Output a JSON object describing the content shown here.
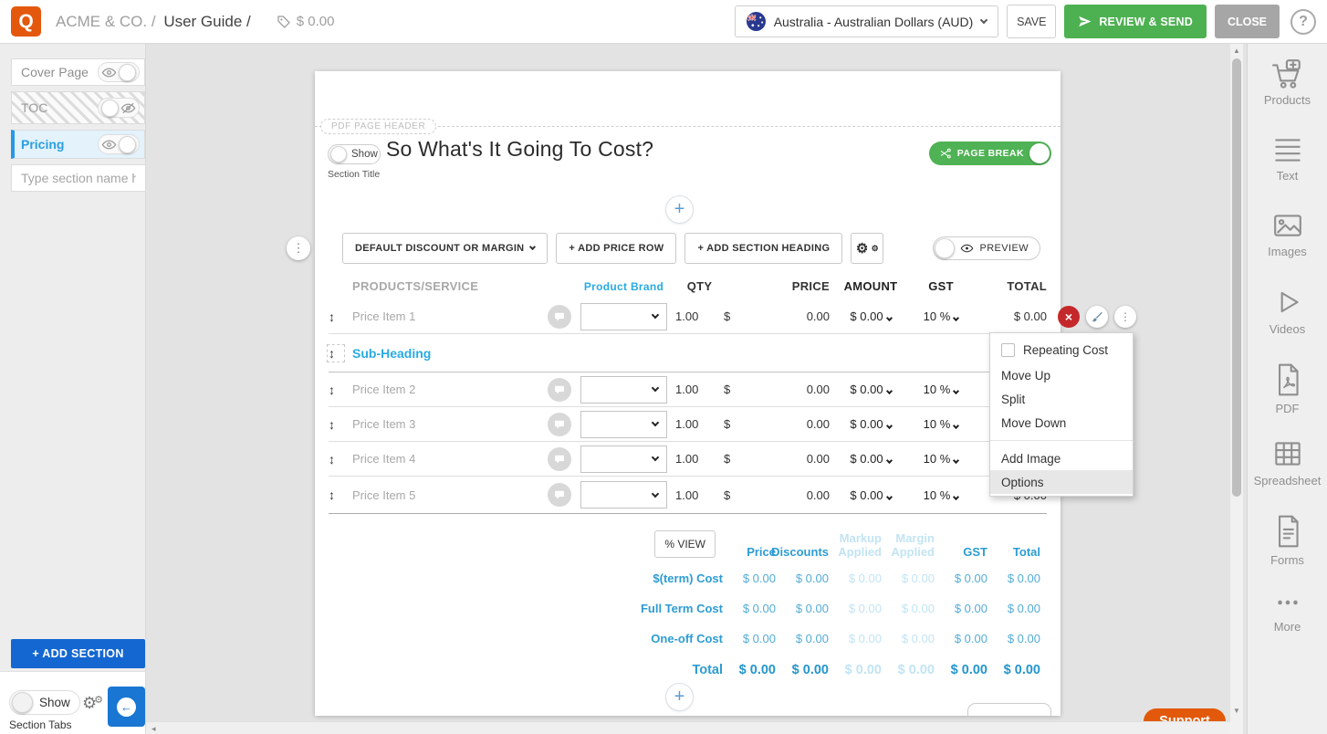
{
  "topbar": {
    "brand": "ACME & CO. /",
    "doc": "User Guide /",
    "tag_amount": "$ 0.00",
    "currency": "Australia - Australian Dollars (AUD)",
    "save": "SAVE",
    "review_send": "REVIEW & SEND",
    "close": "CLOSE",
    "help": "?"
  },
  "left_sidebar": {
    "sections": [
      {
        "label": "Cover Page",
        "state": "visible",
        "style": "normal"
      },
      {
        "label": "TOC",
        "state": "hidden",
        "style": "striped"
      },
      {
        "label": "Pricing",
        "state": "visible",
        "style": "active"
      }
    ],
    "new_section_placeholder": "Type section name h...",
    "add_section": "+ ADD SECTION",
    "show_label": "Show",
    "section_tabs_label": "Section Tabs"
  },
  "editor": {
    "pdf_header_tag": "PDF PAGE HEADER",
    "show_label": "Show",
    "section_title_caption": "Section Title",
    "title": "So What's It Going To Cost?",
    "page_break_label": "PAGE BREAK",
    "toolbar": {
      "discount_dropdown": "DEFAULT DISCOUNT OR MARGIN",
      "add_price_row": "+ ADD PRICE ROW",
      "add_section_heading": "+ ADD SECTION HEADING",
      "preview": "PREVIEW"
    },
    "table": {
      "headers": [
        "PRODUCTS/SERVICE",
        "Product Brand",
        "QTY",
        "PRICE",
        "AMOUNT",
        "GST",
        "TOTAL"
      ],
      "items": [
        {
          "type": "price",
          "name": "Price Item 1",
          "qty": "1.00",
          "currency": "$",
          "price": "0.00",
          "amount": "$ 0.00",
          "gst": "10 %",
          "total": "$ 0.00"
        },
        {
          "type": "subheading",
          "label": "Sub-Heading"
        },
        {
          "type": "price",
          "name": "Price Item 2",
          "qty": "1.00",
          "currency": "$",
          "price": "0.00",
          "amount": "$ 0.00",
          "gst": "10 %",
          "total": "$ 0.00"
        },
        {
          "type": "price",
          "name": "Price Item 3",
          "qty": "1.00",
          "currency": "$",
          "price": "0.00",
          "amount": "$ 0.00",
          "gst": "10 %",
          "total": "$ 0.00"
        },
        {
          "type": "price",
          "name": "Price Item 4",
          "qty": "1.00",
          "currency": "$",
          "price": "0.00",
          "amount": "$ 0.00",
          "gst": "10 %",
          "total": "$ 0.00"
        },
        {
          "type": "price",
          "name": "Price Item 5",
          "qty": "1.00",
          "currency": "$",
          "price": "0.00",
          "amount": "$ 0.00",
          "gst": "10 %",
          "total": "$ 0.00"
        }
      ]
    },
    "row_menu": {
      "items": [
        {
          "label": "Repeating Cost",
          "checkbox": true
        },
        {
          "label": "Move Up"
        },
        {
          "label": "Split"
        },
        {
          "label": "Move Down",
          "divider_after": true
        },
        {
          "label": "Add Image"
        },
        {
          "label": "Options",
          "highlighted": true
        }
      ]
    },
    "summary": {
      "view_button": "% VIEW",
      "columns": [
        {
          "label": "Price",
          "faded": false
        },
        {
          "label": "Discounts",
          "faded": false
        },
        {
          "label": "Markup Applied",
          "faded": true
        },
        {
          "label": "Margin Applied",
          "faded": true
        },
        {
          "label": "GST",
          "faded": false
        },
        {
          "label": "Total",
          "faded": false
        }
      ],
      "rows": [
        {
          "label": "$(term) Cost",
          "total": false,
          "values": [
            "$ 0.00",
            "$ 0.00",
            "$ 0.00",
            "$ 0.00",
            "$ 0.00",
            "$ 0.00"
          ]
        },
        {
          "label": "Full Term Cost",
          "total": false,
          "values": [
            "$ 0.00",
            "$ 0.00",
            "$ 0.00",
            "$ 0.00",
            "$ 0.00",
            "$ 0.00"
          ]
        },
        {
          "label": "One-off Cost",
          "total": false,
          "values": [
            "$ 0.00",
            "$ 0.00",
            "$ 0.00",
            "$ 0.00",
            "$ 0.00",
            "$ 0.00"
          ]
        },
        {
          "label": "Total",
          "total": true,
          "values": [
            "$ 0.00",
            "$ 0.00",
            "$ 0.00",
            "$ 0.00",
            "$ 0.00",
            "$ 0.00"
          ]
        }
      ]
    }
  },
  "right_sidebar": {
    "tools": [
      {
        "label": "Products",
        "icon": "cart-plus-icon"
      },
      {
        "label": "Text",
        "icon": "text-lines-icon"
      },
      {
        "label": "Images",
        "icon": "image-icon"
      },
      {
        "label": "Videos",
        "icon": "play-icon"
      },
      {
        "label": "PDF",
        "icon": "pdf-file-icon"
      },
      {
        "label": "Spreadsheet",
        "icon": "grid-icon"
      },
      {
        "label": "Forms",
        "icon": "form-doc-icon"
      },
      {
        "label": "More",
        "icon": "ellipsis-icon"
      }
    ]
  },
  "support_label": "Support",
  "icons": {
    "plus": "+",
    "help": "?",
    "gear": "⚙",
    "dots_vertical": "⋮",
    "close_x": "×",
    "back_arrow": "←",
    "drag_handle": "↕",
    "scroll_up": "▲",
    "scroll_down": "▼",
    "scroll_left": "◂"
  },
  "colors": {
    "accent_blue": "#29ABE2",
    "summary_blue": "#2D9CD3",
    "green": "#4DB151",
    "brand_orange": "#E3580D",
    "support_orange": "#E2590B",
    "add_section_blue": "#1467D1",
    "delete_red": "#C5282B"
  }
}
